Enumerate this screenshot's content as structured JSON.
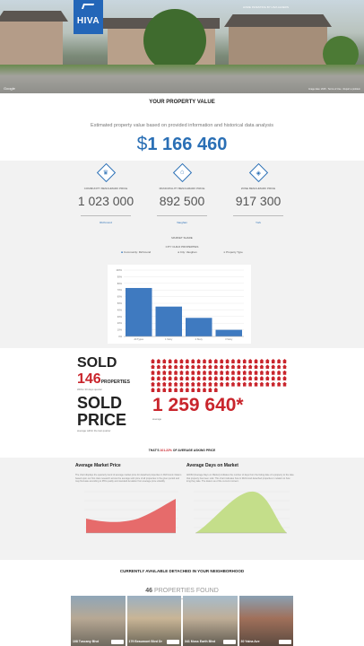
{
  "hero": {
    "brand": "HIVA",
    "top_link": "HOME INVESTING BY HIVA ALDERN",
    "credit": "Google",
    "footer_note": "Image date: 2015 · Terms of Use · Report a problem"
  },
  "section_title": "YOUR PROPERTY VALUE",
  "estimate": {
    "subtitle": "Estimated property value based on provided information and historical data analysis",
    "currency": "$",
    "value": "1 166 460"
  },
  "benchmarks": [
    {
      "icon": "community-icon",
      "label": "COMMUNITY BENCHMARK PRICE",
      "value": "1 023 000",
      "link": "Richmond"
    },
    {
      "icon": "municipality-icon",
      "label": "MUNICIPALITY BENCHMARK PRICE",
      "value": "892 500",
      "link": "Vaughan"
    },
    {
      "icon": "zone-icon",
      "label": "ZONE BENCHMARK PRICE",
      "value": "917 300",
      "link": "York"
    }
  ],
  "chart_section": {
    "title": "MARKET SHARE",
    "subtitle": "CITY CHILD PROPERTIES",
    "legend": [
      "Community: Richmond",
      "City: Vaughan",
      "Property Type"
    ]
  },
  "chart_data": {
    "type": "bar",
    "categories": [
      "All Types",
      "1 Story",
      "2 Story",
      "3 Story"
    ],
    "values": [
      73,
      45,
      28,
      10
    ],
    "ylim": [
      0,
      100
    ],
    "yticks": [
      "0%",
      "10%",
      "20%",
      "30%",
      "40%",
      "50%",
      "60%",
      "70%",
      "80%",
      "90%",
      "100%"
    ],
    "grid": true,
    "colors": {
      "bar": "#3f7ac0"
    }
  },
  "sold": {
    "heading": "SOLD",
    "count": "146",
    "unit": "PROPERTIES",
    "note": "Within 30 days quarter",
    "icon": "house-icon"
  },
  "sold_price": {
    "heading": "SOLD PRICE",
    "value": "1 259 640*",
    "avg_label": "average",
    "note": "average within the last quarter"
  },
  "asking": {
    "prefix": "THAT'S",
    "pct": "101.22%",
    "suffix": "OF AVERAGE ASKING PRICE"
  },
  "market": {
    "price": {
      "title": "Average Market Price",
      "desc": "The chart displays the quarterly trend of average market price for detached properties in Richmond. Data is based upon our first class research across the average sold price of all properties in the given period and may fluctuate according to 95% quality and standard deviation from average price volatility"
    },
    "days": {
      "title": "Average Days on Market",
      "desc": "ADOM (Average Days on Market) indicates the number of days from the listing date of a property to the date that property has been sold. This chart indicates how in Richmond detached properties in relation to how long they take. The data is as of the current moment."
    }
  },
  "colors": {
    "accent": "#2a6fb5",
    "red": "#c9252c",
    "area_red": "#e66b6b",
    "area_green": "#c4de8a"
  },
  "listings": {
    "heading": "CURRENTLY AVAILABLE DETACHED IN YOUR NEIGHBORHOOD",
    "count": "46",
    "found_label": "PROPERTIES FOUND",
    "cards": [
      {
        "address": "108 Tuscany Blvd"
      },
      {
        "address": "179 Beaumont Blvd Dr"
      },
      {
        "address": "341 Moss Earth Blvd"
      },
      {
        "address": "30 Yalna Ave"
      }
    ]
  }
}
